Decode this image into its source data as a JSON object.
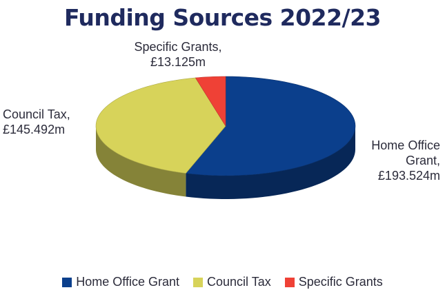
{
  "chart_data": {
    "type": "pie",
    "title": "Funding Sources 2022/23",
    "categories": [
      "Home Office Grant",
      "Council Tax",
      "Specific Grants"
    ],
    "values": [
      193.524,
      145.492,
      13.125
    ],
    "unit": "£m",
    "colors": [
      "#0b3f8c",
      "#d7d35a",
      "#ef4136"
    ],
    "data_labels": [
      [
        "Home Office",
        "Grant,",
        "£193.524m"
      ],
      [
        "Council Tax,",
        "£145.492m"
      ],
      [
        "Specific Grants,",
        "£13.125m"
      ]
    ],
    "legend_position": "bottom",
    "style": "3d"
  }
}
